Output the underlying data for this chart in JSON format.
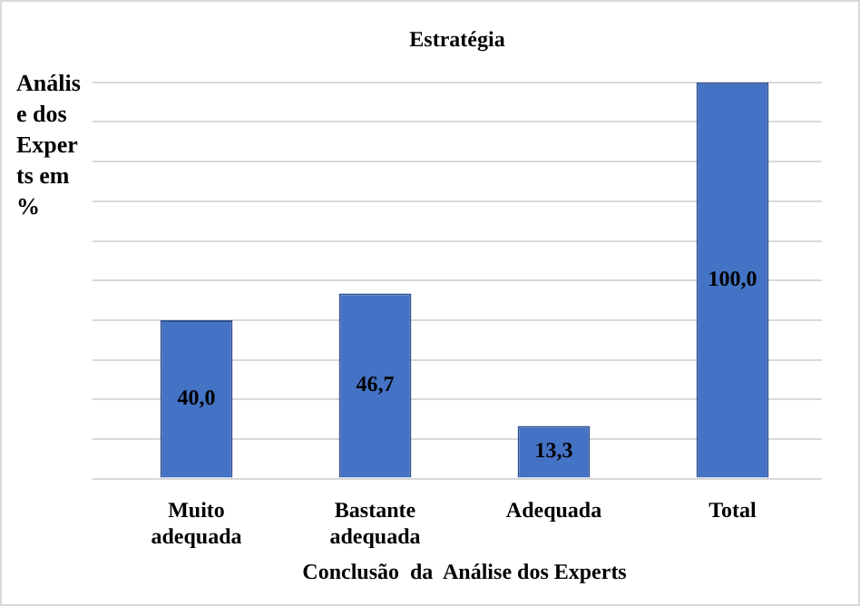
{
  "chart_data": {
    "type": "bar",
    "title": "Estratégia",
    "xlabel": "Conclusão  da  Análise dos Experts",
    "ylabel": "Análise dos Experts em %",
    "categories": [
      "Muito adequada",
      "Bastante adequada",
      "Adequada",
      "Total"
    ],
    "values": [
      40.0,
      46.7,
      13.3,
      100.0
    ],
    "color": "#4472c4",
    "value_labels": [
      "40,0",
      "46,7",
      "13,3",
      "100,0"
    ],
    "grid": "y",
    "tick_labels": "x"
  }
}
